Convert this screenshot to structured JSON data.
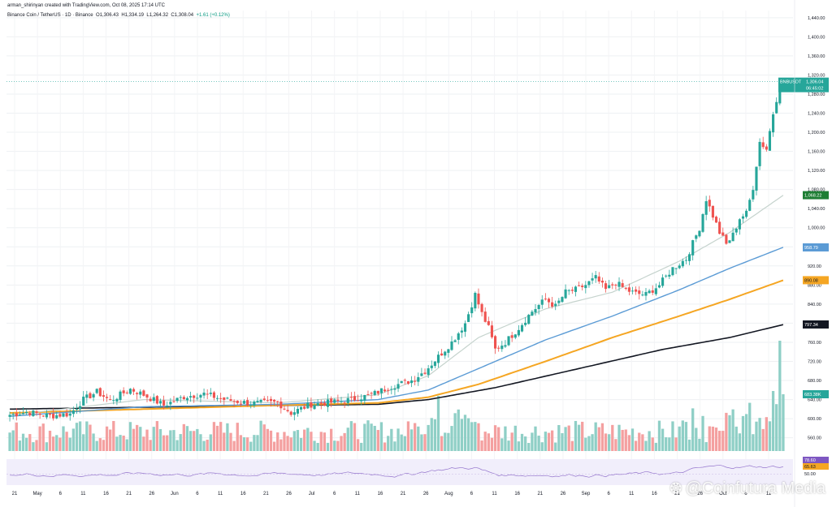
{
  "header": {
    "author_line": "arman_shirinyan created with TradingView.com, Oct 08, 2025 17:14 UTC",
    "symbol": "Binance Coin / TetherUS · 1D · Binance",
    "open": "O1,306.43",
    "high": "H1,334.19",
    "low": "L1,264.32",
    "close": "C1,308.04",
    "change": "+1.61 (+0.12%)"
  },
  "watermark": {
    "text": "@Coinfutura Media",
    "icon": "coinfutura-logo-icon"
  },
  "colors": {
    "up": "#26a69a",
    "down": "#ef5350",
    "ema20": "#c5d3cd",
    "ema50": "#5b9bd5",
    "ema100": "#f5a623",
    "ema200": "#131722",
    "vol_up": "#8fcfc6",
    "vol_down": "#f4a0a0",
    "rsi": "#7e57c2"
  },
  "chart_data": {
    "type": "candlestick",
    "title": "Binance Coin / TetherUS · 1D · Binance",
    "price_axis": {
      "ticks": [
        "1,440.00",
        "1,400.00",
        "1,360.00",
        "1,320.00",
        "1,280.00",
        "1,240.00",
        "1,200.00",
        "1,160.00",
        "1,120.00",
        "1,080.00",
        "1,040.00",
        "1,000.00",
        "960.00",
        "920.00",
        "880.00",
        "840.00",
        "800.00",
        "760.00",
        "720.00",
        "680.00",
        "640.00",
        "600.00",
        "560.00"
      ],
      "range": [
        539,
        1455
      ]
    },
    "x_axis": {
      "ticks": [
        "21",
        "May",
        "6",
        "11",
        "16",
        "21",
        "26",
        "Jun",
        "6",
        "11",
        "16",
        "21",
        "26",
        "Jul",
        "6",
        "11",
        "16",
        "21",
        "26",
        "Aug",
        "6",
        "11",
        "16",
        "21",
        "26",
        "Sep",
        "6",
        "11",
        "16",
        "21",
        "26",
        "Oct",
        "6",
        "11"
      ]
    },
    "price_labels": [
      {
        "name": "BNBUSDT",
        "value": "1,306.04",
        "sub": "06:45:02",
        "color": "#26a69a"
      },
      {
        "name": "EMA 20",
        "value": "1,068.22",
        "color": "#1e7e34"
      },
      {
        "name": "EMA 50",
        "value": "958.79",
        "color": "#5b9bd5"
      },
      {
        "name": "EMA 100",
        "value": "890.08",
        "color": "#f5a623"
      },
      {
        "name": "EMA 200",
        "value": "797.34",
        "color": "#131722"
      },
      {
        "name": "Volume",
        "value": "683.38K",
        "color": "#26a69a"
      }
    ],
    "rsi_labels": [
      "78.60",
      "65.63",
      "50.00"
    ],
    "ohlc_anchors_note": "close anchors by date index",
    "close_anchors": [
      [
        0,
        608
      ],
      [
        5,
        614
      ],
      [
        12,
        606
      ],
      [
        18,
        610
      ],
      [
        22,
        640
      ],
      [
        26,
        656
      ],
      [
        30,
        638
      ],
      [
        36,
        662
      ],
      [
        40,
        650
      ],
      [
        46,
        628
      ],
      [
        52,
        646
      ],
      [
        58,
        652
      ],
      [
        64,
        640
      ],
      [
        72,
        632
      ],
      [
        80,
        634
      ],
      [
        84,
        612
      ],
      [
        90,
        630
      ],
      [
        96,
        634
      ],
      [
        102,
        640
      ],
      [
        108,
        650
      ],
      [
        114,
        668
      ],
      [
        120,
        680
      ],
      [
        124,
        700
      ],
      [
        128,
        730
      ],
      [
        132,
        760
      ],
      [
        136,
        800
      ],
      [
        139,
        860
      ],
      [
        141,
        820
      ],
      [
        143,
        790
      ],
      [
        145,
        745
      ],
      [
        148,
        760
      ],
      [
        152,
        790
      ],
      [
        156,
        825
      ],
      [
        160,
        850
      ],
      [
        163,
        835
      ],
      [
        166,
        865
      ],
      [
        169,
        870
      ],
      [
        172,
        880
      ],
      [
        175,
        895
      ],
      [
        178,
        870
      ],
      [
        181,
        885
      ],
      [
        184,
        870
      ],
      [
        187,
        862
      ],
      [
        190,
        860
      ],
      [
        194,
        880
      ],
      [
        198,
        915
      ],
      [
        202,
        935
      ],
      [
        206,
        1000
      ],
      [
        208,
        1060
      ],
      [
        210,
        1025
      ],
      [
        212,
        990
      ],
      [
        214,
        965
      ],
      [
        216,
        985
      ],
      [
        218,
        1020
      ],
      [
        220,
        1030
      ],
      [
        222,
        1085
      ],
      [
        224,
        1180
      ],
      [
        226,
        1165
      ],
      [
        228,
        1240
      ],
      [
        230,
        1300
      ],
      [
        231,
        1308
      ]
    ],
    "ema20_anchors": [
      [
        0,
        607
      ],
      [
        40,
        640
      ],
      [
        80,
        633
      ],
      [
        110,
        650
      ],
      [
        125,
        690
      ],
      [
        140,
        770
      ],
      [
        160,
        830
      ],
      [
        180,
        865
      ],
      [
        200,
        930
      ],
      [
        215,
        990
      ],
      [
        231,
        1068
      ]
    ],
    "ema50_anchors": [
      [
        0,
        605
      ],
      [
        40,
        625
      ],
      [
        80,
        630
      ],
      [
        110,
        640
      ],
      [
        125,
        660
      ],
      [
        140,
        705
      ],
      [
        160,
        765
      ],
      [
        180,
        815
      ],
      [
        200,
        870
      ],
      [
        215,
        915
      ],
      [
        231,
        959
      ]
    ],
    "ema100_anchors": [
      [
        0,
        612
      ],
      [
        40,
        620
      ],
      [
        80,
        628
      ],
      [
        110,
        633
      ],
      [
        125,
        645
      ],
      [
        140,
        672
      ],
      [
        160,
        720
      ],
      [
        180,
        770
      ],
      [
        200,
        815
      ],
      [
        215,
        850
      ],
      [
        231,
        890
      ]
    ],
    "ema200_anchors": [
      [
        0,
        620
      ],
      [
        60,
        626
      ],
      [
        110,
        630
      ],
      [
        125,
        640
      ],
      [
        145,
        665
      ],
      [
        170,
        705
      ],
      [
        195,
        745
      ],
      [
        215,
        770
      ],
      [
        231,
        797
      ]
    ]
  }
}
